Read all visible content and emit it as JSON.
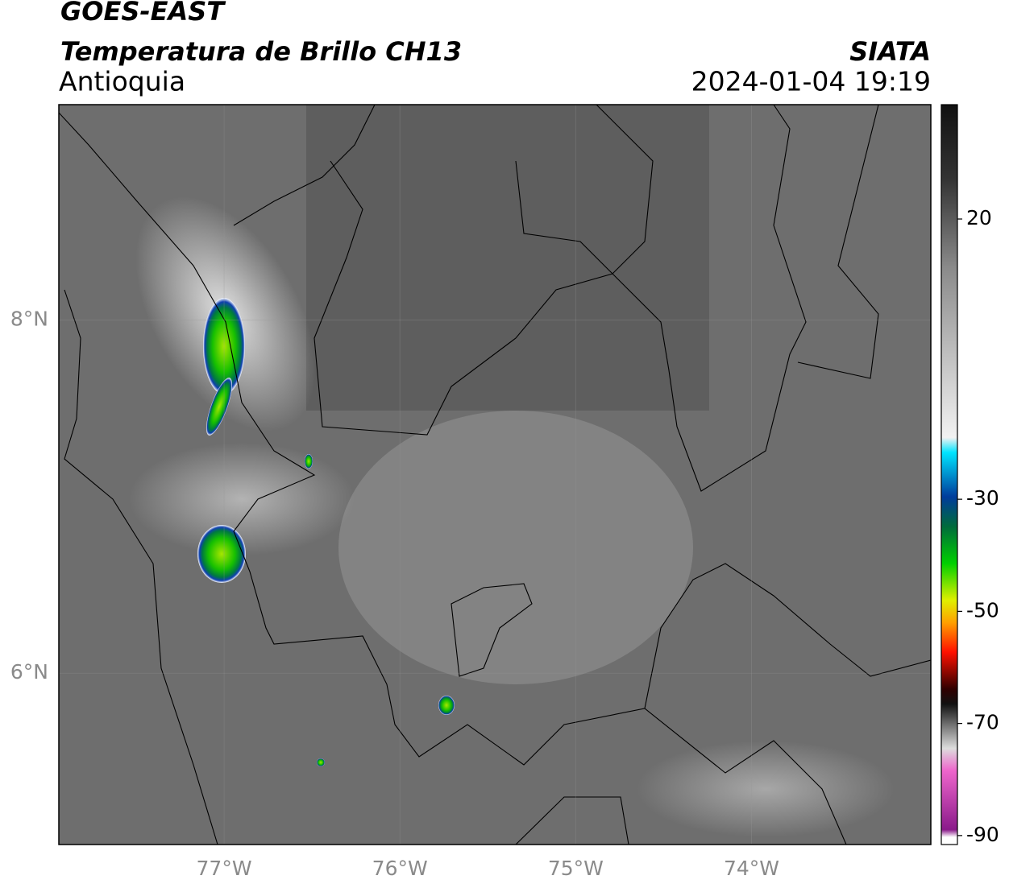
{
  "header": {
    "title": "GOES-EAST",
    "subtitle": "Temperatura de Brillo CH13",
    "region": "Antioquia",
    "source": "SIATA",
    "datetime": "2024-01-04 19:19"
  },
  "map": {
    "lonlim": [
      -77.94,
      -72.98
    ],
    "latlim": [
      5.03,
      9.22
    ],
    "lon_ticks": [
      {
        "value": -77,
        "label": "77°W"
      },
      {
        "value": -76,
        "label": "76°W"
      },
      {
        "value": -75,
        "label": "75°W"
      },
      {
        "value": -74,
        "label": "74°W"
      }
    ],
    "lat_ticks": [
      {
        "value": 8,
        "label": "8°N"
      },
      {
        "value": 6,
        "label": "6°N"
      }
    ]
  },
  "colorbar": {
    "lim": [
      -91.6,
      40.4
    ],
    "ticks": [
      20,
      -30,
      -50,
      -70,
      -90
    ]
  }
}
